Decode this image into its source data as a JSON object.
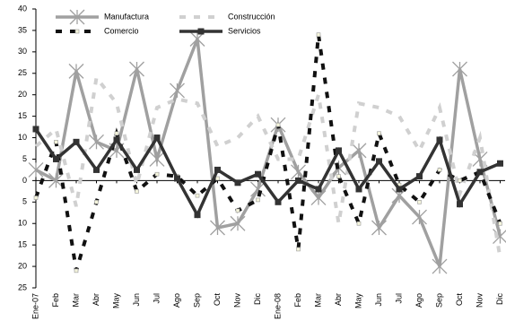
{
  "chart_data": {
    "type": "line",
    "categories": [
      "Ene-07",
      "Feb",
      "Mar",
      "Abr",
      "May",
      "Jun",
      "Jul",
      "Ago",
      "Sep",
      "Oct",
      "Nov",
      "Dic",
      "Ene-08",
      "Feb",
      "Mar",
      "Abr",
      "May",
      "Jun",
      "Jul",
      "Ago",
      "Sep",
      "Oct",
      "Nov",
      "Dic"
    ],
    "series": [
      {
        "name": "Manufactura",
        "color": "#a0a0a0",
        "dash": "solid",
        "marker": "star",
        "values": [
          2.5,
          0,
          25.5,
          9,
          7,
          26,
          5,
          21,
          33,
          -11,
          -10,
          -2,
          13,
          2,
          -4,
          3,
          7,
          -11,
          -3.5,
          -8.5,
          -20,
          26,
          5,
          -13
        ]
      },
      {
        "name": "Construcción",
        "color": "#d0d0d0",
        "dash": "dashed",
        "marker": "none",
        "values": [
          8,
          12,
          -6,
          24,
          18,
          -1,
          17,
          19,
          18,
          8,
          10,
          15,
          5,
          5,
          20,
          -10,
          18,
          17,
          15,
          7,
          17,
          -3,
          10,
          -18
        ]
      },
      {
        "name": "Comercio",
        "color": "#111111",
        "dash": "dashed",
        "marker": "small-square",
        "values": [
          -4,
          9,
          -21,
          -5,
          11,
          -2.5,
          1.5,
          1,
          -3.5,
          0.5,
          -7,
          -4.5,
          13,
          -16,
          34,
          1,
          -10,
          11,
          -1,
          -5,
          2.5,
          0,
          2,
          -10
        ]
      },
      {
        "name": "Servicios",
        "color": "#333333",
        "dash": "solid",
        "marker": "square",
        "values": [
          12,
          5,
          9,
          2.5,
          9.5,
          2.5,
          10,
          0.5,
          -8,
          2.5,
          -0.5,
          1.5,
          -5,
          0,
          -2,
          7,
          -2,
          4.5,
          -2,
          1,
          9.5,
          -5.5,
          2,
          4
        ]
      }
    ],
    "ylim": [
      -25,
      40
    ],
    "yticks": [
      {
        "value": -25,
        "label": "25"
      },
      {
        "value": -20,
        "label": "20"
      },
      {
        "value": -15,
        "label": "15"
      },
      {
        "value": -10,
        "label": "10"
      },
      {
        "value": -5,
        "label": "5"
      },
      0,
      5,
      10,
      15,
      20,
      25,
      30,
      35,
      40
    ],
    "grid": false
  }
}
